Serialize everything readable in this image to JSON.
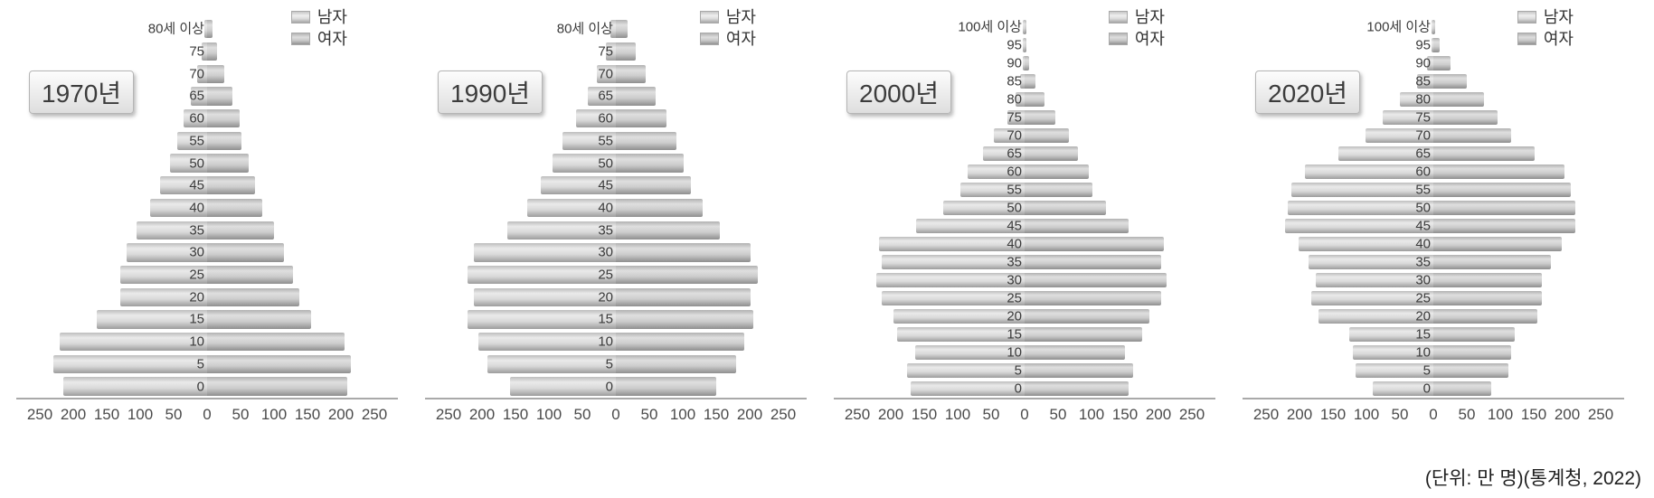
{
  "footnote": "(단위: 만 명)(통계청, 2022)",
  "legend": {
    "male": "남자",
    "female": "여자"
  },
  "colors": {
    "male_bar": "#d9d9d9",
    "female_bar": "#c8c8c8",
    "axis_line": "#a9a9a9",
    "text": "#3a3a3a",
    "background": "#ffffff"
  },
  "x_axis": {
    "ticks": [
      "250",
      "200",
      "150",
      "100",
      "50",
      "0",
      "50",
      "100",
      "150",
      "200",
      "250"
    ],
    "unit_per_tick": 50,
    "max_abs_value": 250,
    "unit": "만 명"
  },
  "chart_data": [
    {
      "type": "bar",
      "variant": "population-pyramid",
      "title": "1970년",
      "unit": "만 명",
      "xlim": [
        -250,
        250
      ],
      "legend_position": "top-right",
      "age_groups": [
        "80세 이상",
        "75",
        "70",
        "65",
        "60",
        "55",
        "50",
        "45",
        "40",
        "35",
        "30",
        "25",
        "20",
        "15",
        "10",
        "5",
        "0"
      ],
      "series": [
        {
          "name": "남자",
          "side": "left",
          "values": [
            4,
            8,
            15,
            25,
            35,
            45,
            55,
            70,
            85,
            105,
            120,
            130,
            130,
            165,
            220,
            230,
            215
          ]
        },
        {
          "name": "여자",
          "side": "right",
          "values": [
            8,
            15,
            25,
            38,
            48,
            52,
            62,
            72,
            82,
            100,
            115,
            128,
            138,
            155,
            205,
            215,
            210
          ]
        }
      ]
    },
    {
      "type": "bar",
      "variant": "population-pyramid",
      "title": "1990년",
      "unit": "만 명",
      "xlim": [
        -250,
        250
      ],
      "legend_position": "top-right",
      "age_groups": [
        "80세 이상",
        "75",
        "70",
        "65",
        "60",
        "55",
        "50",
        "45",
        "40",
        "35",
        "30",
        "25",
        "20",
        "15",
        "10",
        "5",
        "0"
      ],
      "series": [
        {
          "name": "남자",
          "side": "left",
          "values": [
            8,
            15,
            28,
            42,
            60,
            80,
            95,
            112,
            132,
            162,
            212,
            222,
            212,
            222,
            205,
            192,
            158
          ]
        },
        {
          "name": "여자",
          "side": "right",
          "values": [
            18,
            30,
            45,
            60,
            76,
            90,
            102,
            112,
            130,
            155,
            202,
            212,
            202,
            205,
            192,
            180,
            150
          ]
        }
      ]
    },
    {
      "type": "bar",
      "variant": "population-pyramid",
      "title": "2000년",
      "unit": "만 명",
      "xlim": [
        -250,
        250
      ],
      "legend_position": "top-right",
      "age_groups": [
        "100세 이상",
        "95",
        "90",
        "85",
        "80",
        "75",
        "70",
        "65",
        "60",
        "55",
        "50",
        "45",
        "40",
        "35",
        "30",
        "25",
        "20",
        "15",
        "10",
        "5",
        "0"
      ],
      "series": [
        {
          "name": "남자",
          "side": "left",
          "values": [
            0.5,
            1,
            3,
            7,
            14,
            26,
            46,
            62,
            85,
            96,
            122,
            162,
            218,
            214,
            222,
            214,
            196,
            190,
            164,
            176,
            170
          ]
        },
        {
          "name": "여자",
          "side": "right",
          "values": [
            1,
            2,
            7,
            16,
            30,
            46,
            66,
            80,
            96,
            102,
            122,
            156,
            208,
            204,
            212,
            204,
            186,
            176,
            150,
            162,
            156
          ]
        }
      ]
    },
    {
      "type": "bar",
      "variant": "population-pyramid",
      "title": "2020년",
      "unit": "만 명",
      "xlim": [
        -250,
        250
      ],
      "legend_position": "top-right",
      "age_groups": [
        "100세 이상",
        "95",
        "90",
        "85",
        "80",
        "75",
        "70",
        "65",
        "60",
        "55",
        "50",
        "45",
        "40",
        "35",
        "30",
        "25",
        "20",
        "15",
        "10",
        "5",
        "0"
      ],
      "series": [
        {
          "name": "남자",
          "side": "left",
          "values": [
            1,
            3,
            10,
            25,
            50,
            76,
            102,
            142,
            192,
            212,
            218,
            222,
            202,
            186,
            176,
            182,
            172,
            126,
            120,
            116,
            90
          ]
        },
        {
          "name": "여자",
          "side": "right",
          "values": [
            3,
            10,
            25,
            50,
            76,
            96,
            116,
            152,
            196,
            206,
            212,
            212,
            192,
            176,
            162,
            162,
            156,
            122,
            116,
            112,
            86
          ]
        }
      ]
    }
  ]
}
